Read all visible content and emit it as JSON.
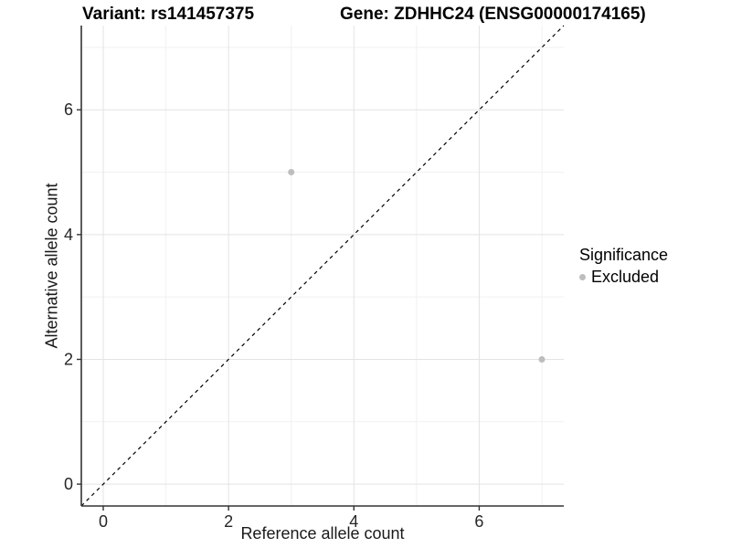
{
  "style": {
    "background": "#ffffff",
    "grid_major": "#e3e3e3",
    "grid_minor": "#f1f1f1",
    "axis_line": "#333333",
    "tick_color": "#333333",
    "tick_text_color": "#262626",
    "title_color": "#000000",
    "point_radius": 3.5
  },
  "chart_data": {
    "type": "scatter",
    "titles": {
      "left": "Variant: rs141457375",
      "right": "Gene: ZDHHC24 (ENSG00000174165)"
    },
    "xlabel": "Reference allele count",
    "ylabel": "Alternative allele count",
    "xlim": [
      -0.35,
      7.35
    ],
    "ylim": [
      -0.35,
      7.35
    ],
    "x_ticks": {
      "values": [
        0,
        2,
        4,
        6
      ],
      "labels": [
        "0",
        "2",
        "4",
        "6"
      ]
    },
    "y_ticks": {
      "values": [
        0,
        2,
        4,
        6
      ],
      "labels": [
        "0",
        "2",
        "4",
        "6"
      ]
    },
    "x_minor": [
      1,
      3,
      5,
      7
    ],
    "y_minor": [
      1,
      3,
      5,
      7
    ],
    "grid": "on",
    "legend_position": "right",
    "series": [
      {
        "name": "Excluded",
        "color": "#bdbdbd",
        "marker": "circle",
        "points": [
          [
            3,
            5
          ],
          [
            7,
            2
          ]
        ]
      }
    ],
    "reference_line": {
      "type": "identity",
      "equation": "y = x",
      "linestyle": "dashed",
      "color": "#000000",
      "from": [
        -0.35,
        -0.35
      ],
      "to": [
        7.35,
        7.35
      ]
    }
  },
  "legend": {
    "title": "Significance",
    "items": [
      {
        "label": "Excluded",
        "color": "#bdbdbd"
      }
    ]
  }
}
